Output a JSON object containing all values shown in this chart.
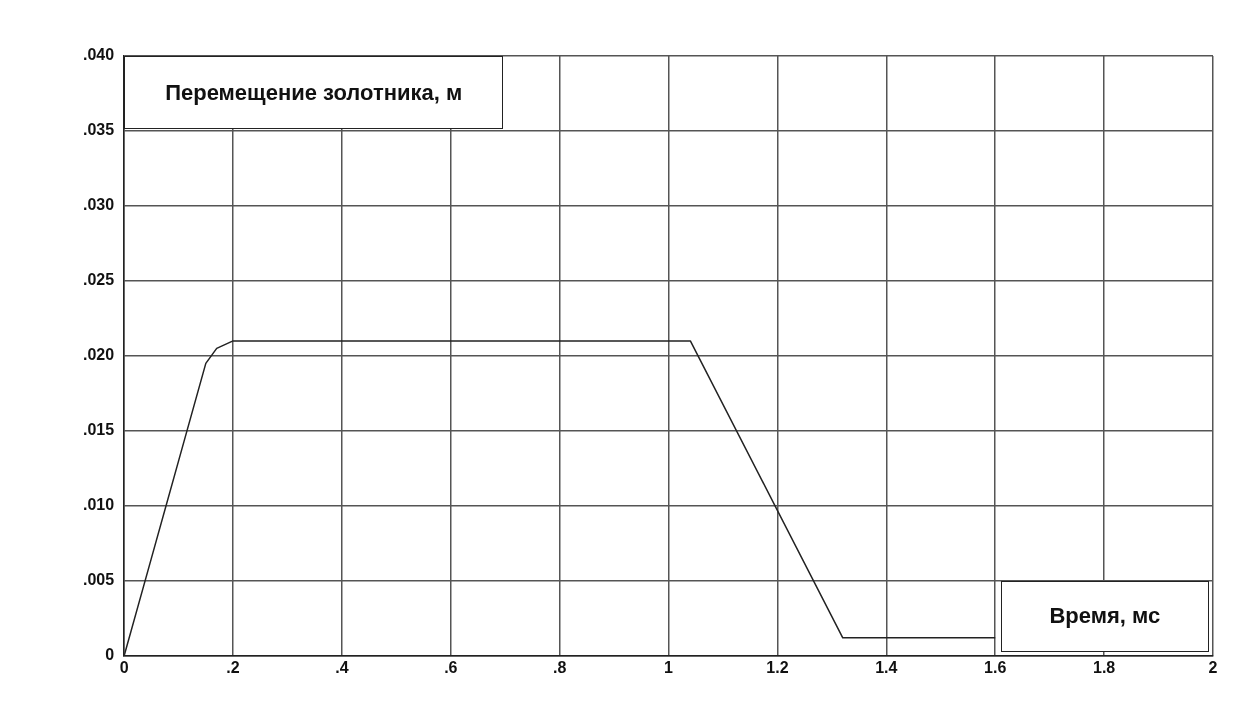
{
  "chart_data": {
    "type": "line",
    "ylabel": "Перемещение золотника, м",
    "xlabel": "Время, мс",
    "x": [
      0,
      0.05,
      0.1,
      0.15,
      0.17,
      0.2,
      1.04,
      1.32,
      1.6
    ],
    "series": [
      {
        "color": "#222222",
        "values": [
          0,
          0.0065,
          0.013,
          0.0195,
          0.0205,
          0.021,
          0.021,
          0.0012,
          0.0012
        ]
      }
    ],
    "xlim": [
      0,
      2
    ],
    "ylim": [
      0,
      0.04
    ],
    "xticks": [
      0,
      {
        "value": 0.2,
        "label": ".2"
      },
      {
        "value": 0.4,
        "label": ".4"
      },
      {
        "value": 0.6,
        "label": ".6"
      },
      {
        "value": 0.8,
        "label": ".8"
      },
      1,
      1.2,
      1.4,
      1.6,
      1.8,
      2
    ],
    "yticks": [
      0,
      {
        "value": 0.005,
        "label": ".005"
      },
      {
        "value": 0.01,
        "label": ".010"
      },
      {
        "value": 0.015,
        "label": ".015"
      },
      {
        "value": 0.02,
        "label": ".020"
      },
      {
        "value": 0.025,
        "label": ".025"
      },
      {
        "value": 0.03,
        "label": ".030"
      },
      {
        "value": 0.035,
        "label": ".035"
      },
      {
        "value": 0.04,
        "label": ".040"
      }
    ],
    "grid": true,
    "legend": false,
    "marker": "none",
    "line_style": "solid"
  }
}
